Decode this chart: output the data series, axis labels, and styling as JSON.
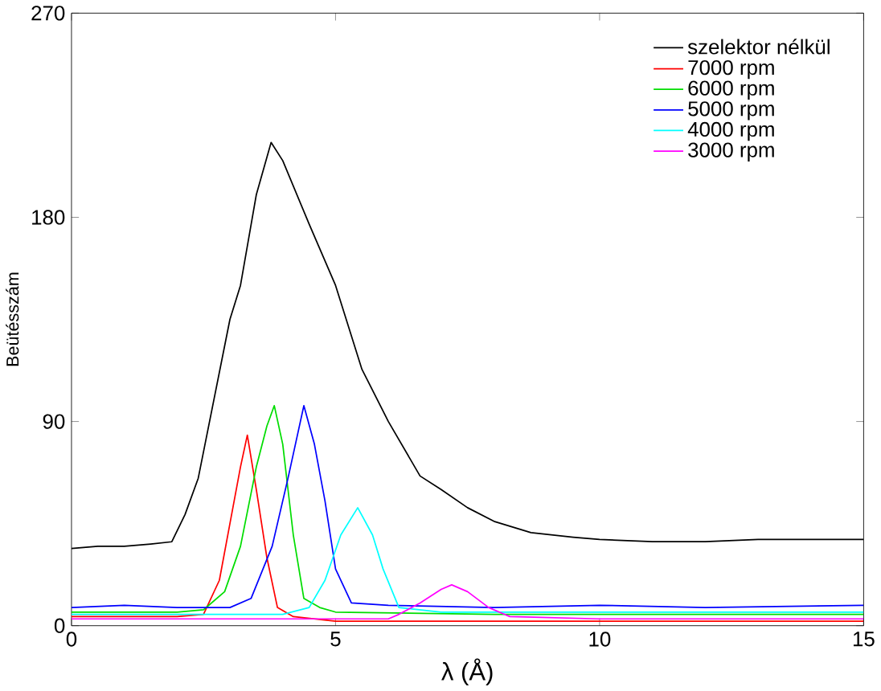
{
  "chart_data": {
    "type": "line",
    "xlabel": "λ (Å)",
    "ylabel": "Beütésszám",
    "xlim": [
      0,
      15
    ],
    "ylim": [
      0,
      270
    ],
    "xticks": [
      0,
      5,
      10,
      15
    ],
    "yticks": [
      0,
      90,
      180,
      270
    ],
    "legend": "top right",
    "grid": false,
    "marker": "none",
    "line_style": "solid",
    "series": [
      {
        "name": "szelektor nélkül",
        "color": "#000000",
        "x": [
          0,
          0.5,
          1,
          1.5,
          1.9,
          2.15,
          2.4,
          2.7,
          3.0,
          3.2,
          3.5,
          3.78,
          4.0,
          4.5,
          5.0,
          5.5,
          6.0,
          6.6,
          7.0,
          7.5,
          8.0,
          8.7,
          9.5,
          10,
          11,
          12,
          13,
          14,
          15
        ],
        "values": [
          34,
          35,
          35,
          36,
          37,
          49,
          65,
          100,
          135,
          150,
          190,
          213,
          205,
          177,
          150,
          113,
          90,
          66,
          60,
          52,
          46,
          41,
          39,
          38,
          37,
          37,
          38,
          38,
          38
        ]
      },
      {
        "name": "7000 rpm",
        "color": "#ff0000",
        "x": [
          0,
          1,
          2,
          2.5,
          2.8,
          3.0,
          3.2,
          3.33,
          3.5,
          3.7,
          3.9,
          4.2,
          5,
          7,
          10,
          15
        ],
        "values": [
          4,
          4,
          4,
          5,
          20,
          45,
          70,
          84,
          60,
          30,
          8,
          4,
          2,
          2,
          2,
          2
        ]
      },
      {
        "name": "6000 rpm",
        "color": "#00dd00",
        "x": [
          0,
          1,
          2,
          2.5,
          2.9,
          3.2,
          3.5,
          3.7,
          3.84,
          4.0,
          4.2,
          4.4,
          4.7,
          5,
          8,
          12,
          15
        ],
        "values": [
          6,
          6,
          6,
          7,
          15,
          35,
          70,
          88,
          97,
          80,
          40,
          12,
          8,
          6,
          5,
          5,
          5
        ]
      },
      {
        "name": "5000 rpm",
        "color": "#0000ff",
        "x": [
          0,
          1,
          2,
          3,
          3.4,
          3.8,
          4.1,
          4.4,
          4.6,
          4.8,
          5.0,
          5.3,
          6,
          8,
          10,
          12,
          15
        ],
        "values": [
          8,
          9,
          8,
          8,
          12,
          35,
          65,
          97,
          80,
          55,
          25,
          10,
          9,
          8,
          9,
          8,
          9
        ]
      },
      {
        "name": "4000 rpm",
        "color": "#00ffff",
        "x": [
          0,
          2,
          4,
          4.5,
          4.8,
          5.1,
          5.42,
          5.7,
          5.9,
          6.2,
          7,
          10,
          15
        ],
        "values": [
          5,
          5,
          5,
          8,
          20,
          40,
          52,
          40,
          25,
          8,
          6,
          6,
          6
        ]
      },
      {
        "name": "3000 rpm",
        "color": "#ff00ff",
        "x": [
          0,
          3,
          6,
          6.2,
          6.6,
          7.0,
          7.2,
          7.5,
          7.9,
          8.3,
          10,
          15
        ],
        "values": [
          3,
          3,
          3,
          5,
          10,
          16,
          18,
          15,
          8,
          4,
          3,
          3
        ]
      }
    ]
  }
}
